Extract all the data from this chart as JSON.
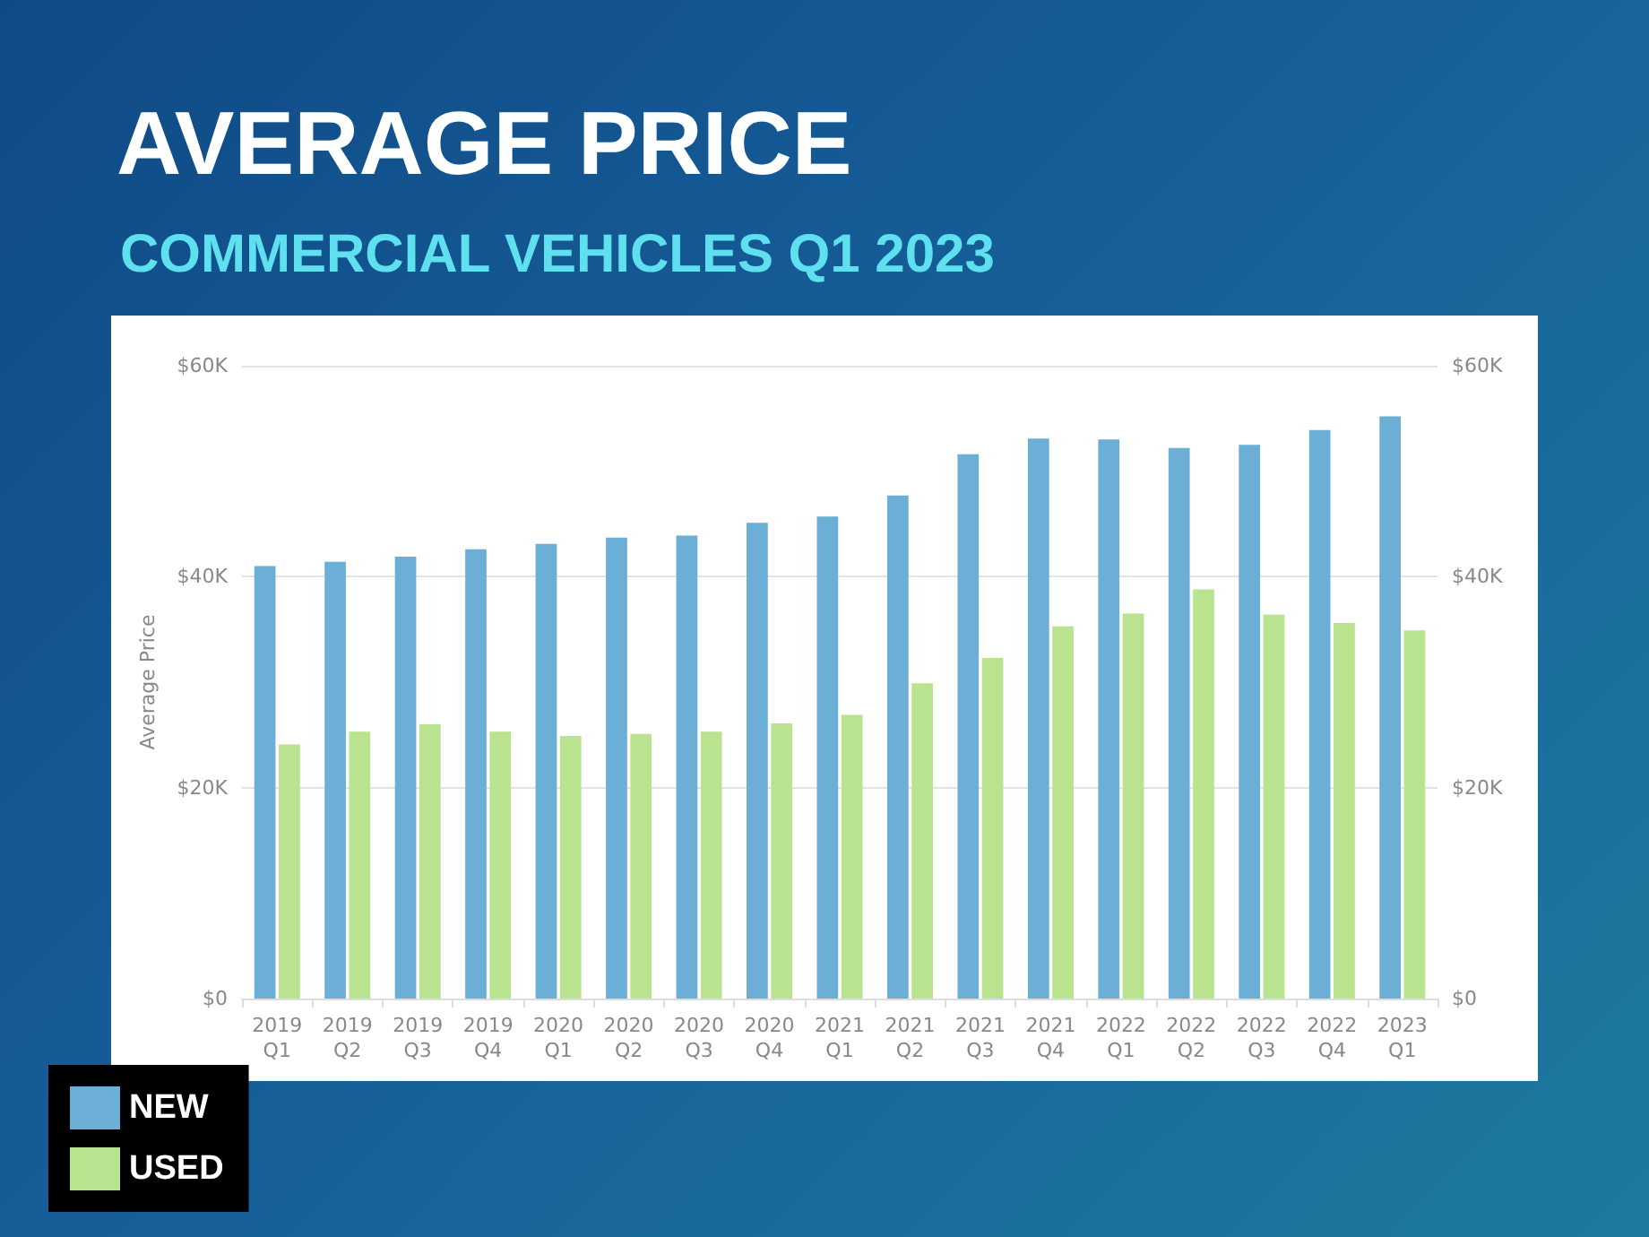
{
  "chart_data": {
    "type": "bar",
    "title": "AVERAGE PRICE",
    "subtitle": "COMMERCIAL VEHICLES Q1 2023",
    "ylabel": "Average Price",
    "categories": [
      "2019 Q1",
      "2019 Q2",
      "2019 Q3",
      "2019 Q4",
      "2020 Q1",
      "2020 Q2",
      "2020 Q3",
      "2020 Q4",
      "2021 Q1",
      "2021 Q2",
      "2021 Q3",
      "2021 Q4",
      "2022 Q1",
      "2022 Q2",
      "2022 Q3",
      "2022 Q4",
      "2023 Q1"
    ],
    "series": [
      {
        "name": "NEW",
        "color": "#6baed6",
        "values": [
          41000,
          41400,
          41900,
          42600,
          43100,
          43700,
          43900,
          45100,
          45700,
          47700,
          51600,
          53100,
          53000,
          52200,
          52500,
          53900,
          55200
        ]
      },
      {
        "name": "USED",
        "color": "#b9e38e",
        "values": [
          24100,
          25300,
          26000,
          25300,
          24900,
          25100,
          25300,
          26100,
          26900,
          29900,
          32300,
          35300,
          36500,
          38800,
          36400,
          35600,
          34900
        ]
      }
    ],
    "ylim": [
      0,
      60000
    ],
    "yticks": [
      {
        "value": 0,
        "label": "$0"
      },
      {
        "value": 20000,
        "label": "$20K"
      },
      {
        "value": 40000,
        "label": "$40K"
      },
      {
        "value": 60000,
        "label": "$60K"
      }
    ],
    "y2lim": [
      0,
      60000
    ],
    "y2ticks": [
      {
        "value": 0,
        "label": "$0"
      },
      {
        "value": 20000,
        "label": "$20K"
      },
      {
        "value": 40000,
        "label": "$40K"
      },
      {
        "value": 60000,
        "label": "$60K"
      }
    ],
    "grid": "y",
    "legend": "bottom left"
  }
}
